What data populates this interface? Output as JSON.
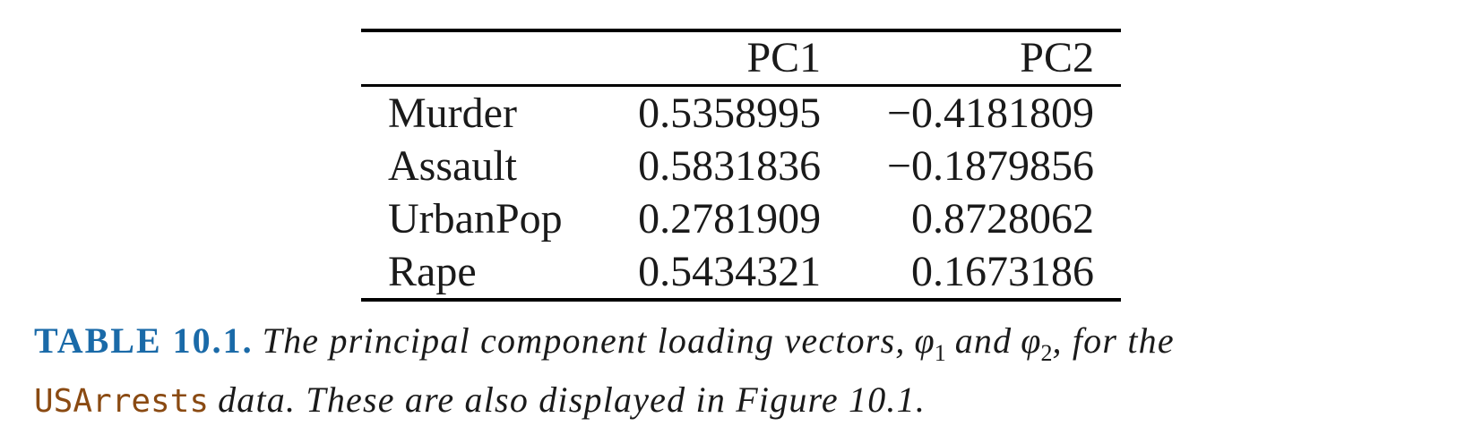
{
  "table": {
    "headers": [
      "",
      "PC1",
      "PC2"
    ],
    "rows": [
      [
        "Murder",
        "0.5358995",
        "−0.4181809"
      ],
      [
        "Assault",
        "0.5831836",
        "−0.1879856"
      ],
      [
        "UrbanPop",
        "0.2781909",
        "0.8728062"
      ],
      [
        "Rape",
        "0.5434321",
        "0.1673186"
      ]
    ]
  },
  "caption": {
    "label": "TABLE 10.1.",
    "text_1": "The principal component loading vectors,",
    "phi": "φ",
    "sub_1": "1",
    "text_2": "and",
    "sub_2": "2",
    "text_3": ", for the",
    "dataset": "USArrests",
    "text_4": "data. These are also displayed in Figure 10.1."
  },
  "colors": {
    "caption_label": "#1a6aa8",
    "dataset_name": "#8a4a12"
  }
}
